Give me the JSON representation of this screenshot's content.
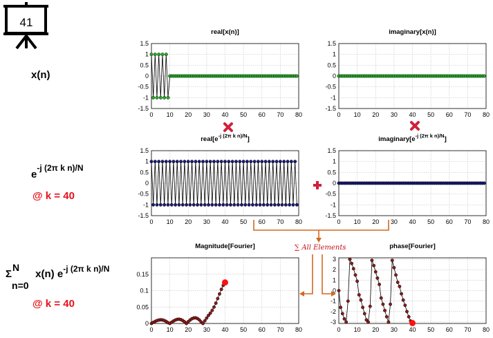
{
  "slide_number": "41",
  "labels": {
    "xn": "x(n)",
    "exp_base": "e",
    "exp_sup": "-j (2π k n)/N",
    "k_value_1": "@ k = 40",
    "sum_sigma": "Σ",
    "sum_top": "N",
    "sum_bottom": "n=0",
    "sum_body": " x(n) e",
    "sum_sup": "-j (2π k n)/N",
    "k_value_2": "@ k = 40",
    "all_elements": "∑ All Elements"
  },
  "colors": {
    "green_marker": "#22b022",
    "blue_marker": "#1a1a7a",
    "dark_red_marker": "#8b1a1a",
    "highlight_red": "#ff1010",
    "arrow_orange": "#d2691e",
    "operator_red": "#d0213a"
  },
  "icons": [
    "projector-screen-icon",
    "multiply-x-icon",
    "plus-icon",
    "arrow-icon"
  ],
  "chart_data": [
    {
      "id": "real-xn",
      "type": "line",
      "title": "real[x(n)]",
      "xlim": [
        0,
        80
      ],
      "ylim": [
        -1.5,
        1.5
      ],
      "xticks": [
        "0",
        "10",
        "20",
        "30",
        "40",
        "50",
        "60",
        "70",
        "80"
      ],
      "yticks": [
        "1.5",
        "1",
        "0.5",
        "0",
        "-0.5",
        "-1",
        "-1.5"
      ],
      "series": [
        {
          "values_desc": "n=0..79",
          "y": [
            1,
            -1,
            1,
            -1,
            1,
            -1,
            1,
            -1,
            1,
            -1,
            0,
            0,
            0,
            0,
            0,
            0,
            0,
            0,
            0,
            0,
            0,
            0,
            0,
            0,
            0,
            0,
            0,
            0,
            0,
            0,
            0,
            0,
            0,
            0,
            0,
            0,
            0,
            0,
            0,
            0,
            0,
            0,
            0,
            0,
            0,
            0,
            0,
            0,
            0,
            0,
            0,
            0,
            0,
            0,
            0,
            0,
            0,
            0,
            0,
            0,
            0,
            0,
            0,
            0,
            0,
            0,
            0,
            0,
            0,
            0,
            0,
            0,
            0,
            0,
            0,
            0,
            0,
            0,
            0,
            0
          ]
        }
      ],
      "marker": "green"
    },
    {
      "id": "imag-xn",
      "type": "line",
      "title": "imaginary[x(n)]",
      "xlim": [
        0,
        80
      ],
      "ylim": [
        -1.5,
        1.5
      ],
      "xticks": [
        "0",
        "10",
        "20",
        "30",
        "40",
        "50",
        "60",
        "70",
        "80"
      ],
      "yticks": [
        "1.5",
        "1",
        "0.5",
        "0",
        "-0.5",
        "-1",
        "-1.5"
      ],
      "series": [
        {
          "rule": "zero",
          "count": 80
        }
      ],
      "marker": "green"
    },
    {
      "id": "real-exp",
      "type": "line",
      "title": "real[e",
      "title_sup": "-j (2π k n)/N",
      "title_end": "]",
      "xlim": [
        0,
        80
      ],
      "ylim": [
        -1.5,
        1.5
      ],
      "xticks": [
        "0",
        "10",
        "20",
        "30",
        "40",
        "50",
        "60",
        "70",
        "80"
      ],
      "yticks": [
        "1.5",
        "1",
        "0.5",
        "0",
        "-0.5",
        "-1",
        "-1.5"
      ],
      "series": [
        {
          "rule": "alternate_pm1",
          "count": 80
        }
      ],
      "marker": "blue"
    },
    {
      "id": "imag-exp",
      "type": "line",
      "title": "imaginary[e",
      "title_sup": "-j (2π k n)/N",
      "title_end": "]",
      "xlim": [
        0,
        80
      ],
      "ylim": [
        -1.5,
        1.5
      ],
      "xticks": [
        "0",
        "10",
        "20",
        "30",
        "40",
        "50",
        "60",
        "70",
        "80"
      ],
      "yticks": [
        "1.5",
        "1",
        "0.5",
        "0",
        "-0.5",
        "-1",
        "-1.5"
      ],
      "series": [
        {
          "rule": "zero",
          "count": 80
        }
      ],
      "marker": "blue"
    },
    {
      "id": "magnitude",
      "type": "line",
      "title": "Magnitude[Fourier]",
      "xlim": [
        0,
        80
      ],
      "ylim": [
        0,
        0.2
      ],
      "xticks": [
        "0",
        "10",
        "20",
        "30",
        "40",
        "50",
        "60",
        "70",
        "80"
      ],
      "yticks": [
        "0.15",
        "0.1",
        "0.05",
        "0"
      ],
      "ytick_values": [
        0.15,
        0.1,
        0.05,
        0
      ],
      "series": [
        {
          "x_start": 0,
          "y": [
            0.0,
            0.0032,
            0.0062,
            0.0088,
            0.0105,
            0.0112,
            0.0107,
            0.009,
            0.0062,
            0.0025,
            0.0,
            0.0038,
            0.0075,
            0.0105,
            0.0125,
            0.013,
            0.0118,
            0.009,
            0.005,
            0.0,
            0.0055,
            0.0105,
            0.0145,
            0.0168,
            0.0172,
            0.0152,
            0.011,
            0.0048,
            0.0,
            0.0082,
            0.0165,
            0.0245,
            0.0315,
            0.04,
            0.05,
            0.062,
            0.076,
            0.09,
            0.104,
            0.116,
            0.125
          ]
        }
      ],
      "highlight": {
        "x": 40,
        "y": 0.125
      }
    },
    {
      "id": "phase",
      "type": "line",
      "title": "phase[Fourier]",
      "xlim": [
        0,
        80
      ],
      "ylim": [
        -3.14,
        3.14
      ],
      "xticks": [
        "0",
        "10",
        "20",
        "30",
        "40",
        "50",
        "60",
        "70",
        "80"
      ],
      "yticks": [
        "3",
        "2",
        "1",
        "0",
        "-1",
        "-2",
        "-3"
      ],
      "ytick_values": [
        3,
        2,
        1,
        0,
        -1,
        -2,
        -3
      ],
      "series": [
        {
          "x_start": 0,
          "y": [
            0,
            -1.6,
            -2.2,
            -2.7,
            -3.0,
            -1.0,
            3.0,
            2.6,
            2.1,
            1.5,
            0.9,
            -0.4,
            -0.9,
            -1.6,
            -2.2,
            -2.8,
            -3.0,
            -1.5,
            2.9,
            2.4,
            1.8,
            1.2,
            0.6,
            -0.7,
            -1.3,
            -1.9,
            -2.5,
            -3.0,
            -1.3,
            2.9,
            2.2,
            1.5,
            0.8,
            0.4,
            -0.3,
            -0.9,
            -1.4,
            -2.0,
            -2.5,
            -2.9,
            -3.1
          ]
        }
      ],
      "highlight": {
        "x": 40,
        "y": -3.1
      }
    }
  ]
}
